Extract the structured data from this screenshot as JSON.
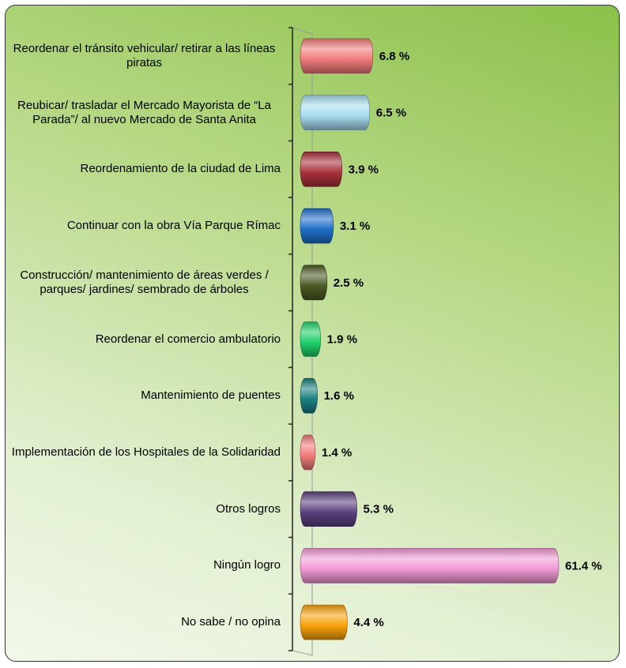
{
  "chart_data": {
    "type": "bar",
    "orientation": "horizontal",
    "categories": [
      "Reordenar el tránsito vehicular/ retirar a las líneas piratas",
      "Reubicar/ trasladar el Mercado Mayorista de “La Parada”/ al nuevo Mercado de Santa Anita",
      "Reordenamiento de la ciudad de Lima",
      "Continuar con la obra Vía Parque Rímac",
      "Construcción/ mantenimiento de áreas verdes / parques/ jardines/ sembrado de árboles",
      "Reordenar el comercio ambulatorio",
      "Mantenimiento de puentes",
      "Implementación de los Hospitales de la Solidaridad",
      "Otros logros",
      "Ningún logro",
      "No sabe / no opina"
    ],
    "values": [
      6.8,
      6.5,
      3.9,
      3.1,
      2.5,
      1.9,
      1.6,
      1.4,
      5.3,
      61.4,
      4.4
    ],
    "value_labels": [
      "6.8 %",
      "6.5 %",
      "3.9 %",
      "3.1 %",
      "2.5 %",
      "1.9 %",
      "1.6 %",
      "1.4 %",
      "5.3 %",
      "61.4 %",
      "4.4 %"
    ],
    "colors": [
      "#f07a7a",
      "#a6dcef",
      "#a8303a",
      "#1f6fc9",
      "#4b5a24",
      "#1fd06a",
      "#1a7f80",
      "#f07a7a",
      "#5a3f7e",
      "#f29ad6",
      "#f7a10a"
    ]
  }
}
